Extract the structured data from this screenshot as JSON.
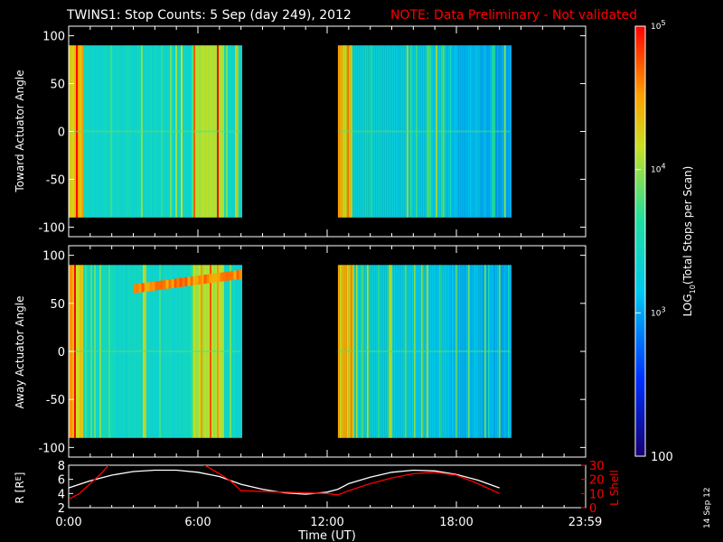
{
  "header": {
    "title": "TWINS1: Stop Counts:  5 Sep (day 249), 2012",
    "note": "NOTE: Data Preliminary - Not validated"
  },
  "colors": {
    "background": "#000000",
    "foreground": "#ffffff",
    "note": "#ff0000",
    "lshell": "#ff0000",
    "radius": "#ffffff"
  },
  "footer_date": "14 Sep 12",
  "colorbar": {
    "label": "LOG10(Total Stops per Scan)",
    "label_main": "LOG",
    "label_sub": "10",
    "label_rest": "(Total Stops per Scan)",
    "scale": "log",
    "range": [
      100,
      100000
    ],
    "ticks": [
      {
        "value": 100,
        "base": "100",
        "exp": ""
      },
      {
        "value": 1000,
        "base": "10",
        "exp": "3"
      },
      {
        "value": 10000,
        "base": "10",
        "exp": "4"
      },
      {
        "value": 100000,
        "base": "10",
        "exp": "5"
      }
    ]
  },
  "chart_data": [
    {
      "type": "heatmap",
      "ylabel": "Toward Actuator Angle",
      "ylim": [
        -110,
        110
      ],
      "yticks": [
        100,
        50,
        0,
        -50,
        -100
      ],
      "xlim_hours": [
        0,
        24
      ],
      "angle_range": [
        -90,
        90
      ],
      "data_blocks_hours": [
        [
          0.0,
          8.0
        ],
        [
          12.5,
          20.5
        ]
      ],
      "dominant_level": "~1000-3000 stops per scan"
    },
    {
      "type": "heatmap",
      "ylabel": "Away Actuator Angle",
      "ylim": [
        -110,
        110
      ],
      "yticks": [
        100,
        50,
        0,
        -50,
        -100
      ],
      "xlim_hours": [
        0,
        24
      ],
      "angle_range": [
        -90,
        90
      ],
      "data_blocks_hours": [
        [
          0.0,
          8.0
        ],
        [
          12.5,
          20.5
        ]
      ],
      "dominant_level": "~1000-3000 stops per scan"
    },
    {
      "type": "line",
      "xlabel": "Time (UT)",
      "xticks": [
        "0:00",
        "6:00",
        "12:00",
        "18:00",
        "23:59"
      ],
      "xtick_hours": [
        0,
        6,
        12,
        18,
        23.98
      ],
      "left_axis": {
        "label_pre": "R [R",
        "label_sub": "E",
        "label_post": "]",
        "ylim": [
          2,
          8
        ],
        "ticks": [
          2,
          4,
          6,
          8
        ]
      },
      "right_axis": {
        "label": "L Shell",
        "ylim": [
          0,
          30
        ],
        "ticks": [
          0,
          10,
          20,
          30
        ]
      },
      "series": [
        {
          "axis": "left",
          "x": [
            0,
            1,
            2,
            3,
            4,
            5,
            6,
            7,
            8,
            9,
            10,
            11,
            12,
            12.5,
            13,
            14,
            15,
            16,
            17,
            18,
            19,
            20
          ],
          "y": [
            4.8,
            5.8,
            6.6,
            7.1,
            7.3,
            7.3,
            7.0,
            6.4,
            5.3,
            4.6,
            4.1,
            3.9,
            4.2,
            4.6,
            5.4,
            6.3,
            7.0,
            7.3,
            7.2,
            6.7,
            5.9,
            4.8
          ]
        },
        {
          "axis": "right",
          "x": [
            0,
            0.5,
            1,
            1.5,
            1.9,
            2,
            6,
            6.2,
            7,
            7.5,
            8,
            10,
            12,
            12.5,
            13,
            14,
            15,
            16,
            17,
            18,
            19,
            20
          ],
          "y": [
            6,
            10,
            17,
            24,
            31,
            null,
            null,
            31,
            24,
            19,
            12,
            11,
            10,
            9,
            12,
            17,
            21,
            24,
            25,
            23,
            17,
            10
          ]
        }
      ]
    }
  ]
}
